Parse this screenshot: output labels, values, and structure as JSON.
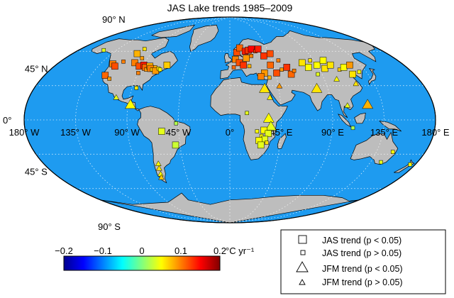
{
  "chart_data": {
    "type": "scatter",
    "title": "JAS Lake trends 1985–2009",
    "map": {
      "lon_ticks": [
        {
          "value": -180,
          "label": "180° W"
        },
        {
          "value": -135,
          "label": "135° W"
        },
        {
          "value": -90,
          "label": "90° W"
        },
        {
          "value": -45,
          "label": "45° W"
        },
        {
          "value": 0,
          "label": "0°"
        },
        {
          "value": 45,
          "label": "45° E"
        },
        {
          "value": 90,
          "label": "90° E"
        },
        {
          "value": 135,
          "label": "135° E"
        },
        {
          "value": 180,
          "label": "180° E"
        }
      ],
      "lat_ticks": [
        {
          "value": 90,
          "label": "90° N"
        },
        {
          "value": 45,
          "label": "45° N"
        },
        {
          "value": 0,
          "label": "0°"
        },
        {
          "value": -45,
          "label": "45° S"
        },
        {
          "value": -90,
          "label": "90° S"
        }
      ],
      "ocean_color": "#1e9bf0",
      "land_color": "#bdbdbd",
      "grid": true
    },
    "colorbar": {
      "range": [
        -0.2,
        0.2
      ],
      "ticks": [
        "−0.2",
        "−0.1",
        "0",
        "0.1",
        "0.2"
      ],
      "unit": "°C yr⁻¹",
      "colormap": "jet"
    },
    "legend": {
      "position": "bottom-right",
      "entries": [
        {
          "label": "JAS trend (p < 0.05)",
          "marker": "square",
          "size": "large"
        },
        {
          "label": "JAS trend (p > 0.05)",
          "marker": "square",
          "size": "small"
        },
        {
          "label": "JFM trend (p < 0.05)",
          "marker": "triangle",
          "size": "large"
        },
        {
          "label": "JFM trend (p > 0.05)",
          "marker": "triangle",
          "size": "small"
        }
      ]
    },
    "points": [
      {
        "lon": -122,
        "lat": 49,
        "trend": 0.1,
        "marker": "square",
        "sig": true
      },
      {
        "lon": -118,
        "lat": 47,
        "trend": 0.12,
        "marker": "square",
        "sig": true
      },
      {
        "lon": -113,
        "lat": 51,
        "trend": 0.1,
        "marker": "square",
        "sig": false
      },
      {
        "lon": -106,
        "lat": 58,
        "trend": 0.08,
        "marker": "square",
        "sig": true
      },
      {
        "lon": -103,
        "lat": 62,
        "trend": 0.06,
        "marker": "square",
        "sig": false
      },
      {
        "lon": -100,
        "lat": 50,
        "trend": 0.1,
        "marker": "square",
        "sig": true
      },
      {
        "lon": -96,
        "lat": 54,
        "trend": 0.09,
        "marker": "square",
        "sig": false
      },
      {
        "lon": -93,
        "lat": 47,
        "trend": 0.12,
        "marker": "square",
        "sig": true
      },
      {
        "lon": -89,
        "lat": 48,
        "trend": 0.14,
        "marker": "square",
        "sig": true
      },
      {
        "lon": -86,
        "lat": 46,
        "trend": 0.11,
        "marker": "square",
        "sig": true
      },
      {
        "lon": -84,
        "lat": 44,
        "trend": 0.09,
        "marker": "square",
        "sig": false
      },
      {
        "lon": -82,
        "lat": 47,
        "trend": 0.08,
        "marker": "square",
        "sig": true
      },
      {
        "lon": -80,
        "lat": 45,
        "trend": 0.1,
        "marker": "square",
        "sig": true
      },
      {
        "lon": -78,
        "lat": 44,
        "trend": 0.07,
        "marker": "square",
        "sig": false
      },
      {
        "lon": -76,
        "lat": 46,
        "trend": 0.08,
        "marker": "square",
        "sig": false
      },
      {
        "lon": -74,
        "lat": 43,
        "trend": 0.09,
        "marker": "square",
        "sig": true
      },
      {
        "lon": -72,
        "lat": 45,
        "trend": 0.06,
        "marker": "square",
        "sig": false
      },
      {
        "lon": -70,
        "lat": 44,
        "trend": 0.05,
        "marker": "square",
        "sig": false
      },
      {
        "lon": -65,
        "lat": 48,
        "trend": 0.07,
        "marker": "square",
        "sig": true
      },
      {
        "lon": -90,
        "lat": 41,
        "trend": 0.1,
        "marker": "square",
        "sig": false
      },
      {
        "lon": -121,
        "lat": 39,
        "trend": 0.11,
        "marker": "square",
        "sig": true
      },
      {
        "lon": -115,
        "lat": 36,
        "trend": 0.09,
        "marker": "square",
        "sig": false
      },
      {
        "lon": -86,
        "lat": 28,
        "trend": 0.06,
        "marker": "square",
        "sig": false
      },
      {
        "lon": -102,
        "lat": 20,
        "trend": 0.04,
        "marker": "triangle",
        "sig": false
      },
      {
        "lon": -88,
        "lat": 14,
        "trend": 0.05,
        "marker": "triangle",
        "sig": true
      },
      {
        "lon": -60,
        "lat": -10,
        "trend": 0.04,
        "marker": "square",
        "sig": true
      },
      {
        "lon": -49,
        "lat": -22,
        "trend": 0.03,
        "marker": "square",
        "sig": true
      },
      {
        "lon": -47,
        "lat": -3,
        "trend": 0.02,
        "marker": "square",
        "sig": false
      },
      {
        "lon": -69,
        "lat": -38,
        "trend": 0.05,
        "marker": "triangle",
        "sig": false
      },
      {
        "lon": -70,
        "lat": -42,
        "trend": 0.06,
        "marker": "triangle",
        "sig": false
      },
      {
        "lon": -71,
        "lat": -47,
        "trend": 0.05,
        "marker": "triangle",
        "sig": false
      },
      {
        "lon": -72,
        "lat": -50,
        "trend": 0.07,
        "marker": "triangle",
        "sig": false
      },
      {
        "lon": -150,
        "lat": 61,
        "trend": 0.04,
        "marker": "square",
        "sig": false
      },
      {
        "lon": 8,
        "lat": 59,
        "trend": 0.12,
        "marker": "square",
        "sig": true
      },
      {
        "lon": 12,
        "lat": 63,
        "trend": 0.11,
        "marker": "square",
        "sig": true
      },
      {
        "lon": 18,
        "lat": 60,
        "trend": 0.14,
        "marker": "square",
        "sig": true
      },
      {
        "lon": 22,
        "lat": 61,
        "trend": 0.13,
        "marker": "square",
        "sig": true
      },
      {
        "lon": 26,
        "lat": 62,
        "trend": 0.15,
        "marker": "square",
        "sig": true
      },
      {
        "lon": 30,
        "lat": 60,
        "trend": 0.12,
        "marker": "square",
        "sig": false
      },
      {
        "lon": 34,
        "lat": 62,
        "trend": 0.14,
        "marker": "square",
        "sig": true
      },
      {
        "lon": 6,
        "lat": 53,
        "trend": 0.1,
        "marker": "square",
        "sig": true
      },
      {
        "lon": 10,
        "lat": 50,
        "trend": 0.12,
        "marker": "square",
        "sig": true
      },
      {
        "lon": 14,
        "lat": 48,
        "trend": 0.13,
        "marker": "square",
        "sig": true
      },
      {
        "lon": 4,
        "lat": 46,
        "trend": 0.11,
        "marker": "square",
        "sig": false
      },
      {
        "lon": 18,
        "lat": 54,
        "trend": 0.09,
        "marker": "square",
        "sig": true
      },
      {
        "lon": 24,
        "lat": 56,
        "trend": 0.1,
        "marker": "square",
        "sig": false
      },
      {
        "lon": 20,
        "lat": 47,
        "trend": 0.08,
        "marker": "square",
        "sig": false
      },
      {
        "lon": 38,
        "lat": 56,
        "trend": 0.13,
        "marker": "square",
        "sig": true
      },
      {
        "lon": 46,
        "lat": 58,
        "trend": 0.12,
        "marker": "square",
        "sig": true
      },
      {
        "lon": 52,
        "lat": 52,
        "trend": 0.1,
        "marker": "square",
        "sig": false
      },
      {
        "lon": 42,
        "lat": 48,
        "trend": 0.11,
        "marker": "square",
        "sig": true
      },
      {
        "lon": 46,
        "lat": 41,
        "trend": 0.12,
        "marker": "square",
        "sig": true
      },
      {
        "lon": 52,
        "lat": 44,
        "trend": 0.09,
        "marker": "square",
        "sig": false
      },
      {
        "lon": 58,
        "lat": 46,
        "trend": 0.13,
        "marker": "square",
        "sig": true
      },
      {
        "lon": 60,
        "lat": 40,
        "trend": 0.11,
        "marker": "square",
        "sig": true
      },
      {
        "lon": 64,
        "lat": 43,
        "trend": 0.1,
        "marker": "square",
        "sig": false
      },
      {
        "lon": 34,
        "lat": 41,
        "trend": 0.09,
        "marker": "square",
        "sig": true
      },
      {
        "lon": 30,
        "lat": 38,
        "trend": 0.1,
        "marker": "square",
        "sig": true
      },
      {
        "lon": 38,
        "lat": 37,
        "trend": 0.08,
        "marker": "square",
        "sig": false
      },
      {
        "lon": 76,
        "lat": 50,
        "trend": 0.06,
        "marker": "square",
        "sig": true
      },
      {
        "lon": 80,
        "lat": 46,
        "trend": 0.05,
        "marker": "square",
        "sig": true
      },
      {
        "lon": 86,
        "lat": 52,
        "trend": 0.06,
        "marker": "square",
        "sig": false
      },
      {
        "lon": 90,
        "lat": 48,
        "trend": 0.05,
        "marker": "square",
        "sig": true
      },
      {
        "lon": 96,
        "lat": 45,
        "trend": 0.06,
        "marker": "square",
        "sig": true
      },
      {
        "lon": 100,
        "lat": 52,
        "trend": 0.05,
        "marker": "square",
        "sig": true
      },
      {
        "lon": 104,
        "lat": 48,
        "trend": 0.06,
        "marker": "square",
        "sig": true
      },
      {
        "lon": 110,
        "lat": 44,
        "trend": 0.07,
        "marker": "square",
        "sig": false
      },
      {
        "lon": 116,
        "lat": 46,
        "trend": 0.05,
        "marker": "square",
        "sig": true
      },
      {
        "lon": 120,
        "lat": 40,
        "trend": 0.06,
        "marker": "square",
        "sig": true
      },
      {
        "lon": 124,
        "lat": 48,
        "trend": 0.09,
        "marker": "square",
        "sig": true
      },
      {
        "lon": 128,
        "lat": 42,
        "trend": 0.05,
        "marker": "square",
        "sig": false
      },
      {
        "lon": 86,
        "lat": 40,
        "trend": 0.04,
        "marker": "square",
        "sig": false
      },
      {
        "lon": 102,
        "lat": 36,
        "trend": 0.05,
        "marker": "triangle",
        "sig": false
      },
      {
        "lon": 118,
        "lat": 32,
        "trend": 0.06,
        "marker": "triangle",
        "sig": false
      },
      {
        "lon": 104,
        "lat": 13,
        "trend": 0.04,
        "marker": "triangle",
        "sig": false
      },
      {
        "lon": 122,
        "lat": 14,
        "trend": 0.08,
        "marker": "triangle",
        "sig": true
      },
      {
        "lon": 80,
        "lat": 28,
        "trend": 0.06,
        "marker": "triangle",
        "sig": true
      },
      {
        "lon": 32,
        "lat": 28,
        "trend": 0.06,
        "marker": "triangle",
        "sig": true
      },
      {
        "lon": 36,
        "lat": 20,
        "trend": 0.05,
        "marker": "triangle",
        "sig": false
      },
      {
        "lon": 46,
        "lat": 30,
        "trend": 0.09,
        "marker": "triangle",
        "sig": false
      },
      {
        "lon": 34,
        "lat": 2,
        "trend": 0.05,
        "marker": "triangle",
        "sig": true
      },
      {
        "lon": 36,
        "lat": -5,
        "trend": 0.04,
        "marker": "triangle",
        "sig": true
      },
      {
        "lon": 30,
        "lat": -9,
        "trend": 0.05,
        "marker": "square",
        "sig": true
      },
      {
        "lon": 34,
        "lat": -12,
        "trend": 0.04,
        "marker": "square",
        "sig": true
      },
      {
        "lon": 28,
        "lat": -14,
        "trend": 0.05,
        "marker": "square",
        "sig": false
      },
      {
        "lon": 31,
        "lat": -17,
        "trend": 0.04,
        "marker": "square",
        "sig": true
      },
      {
        "lon": 26,
        "lat": -18,
        "trend": 0.05,
        "marker": "square",
        "sig": true
      },
      {
        "lon": 33,
        "lat": -20,
        "trend": 0.06,
        "marker": "square",
        "sig": false
      },
      {
        "lon": 28,
        "lat": -22,
        "trend": 0.04,
        "marker": "square",
        "sig": true
      },
      {
        "lon": 24,
        "lat": -10,
        "trend": 0.05,
        "marker": "square",
        "sig": false
      },
      {
        "lon": 15,
        "lat": 6,
        "trend": 0.04,
        "marker": "square",
        "sig": false
      },
      {
        "lon": 108,
        "lat": -7,
        "trend": 0.02,
        "marker": "square",
        "sig": false
      },
      {
        "lon": 150,
        "lat": -28,
        "trend": 0.05,
        "marker": "square",
        "sig": false
      },
      {
        "lon": 145,
        "lat": -37,
        "trend": 0.04,
        "marker": "square",
        "sig": false
      },
      {
        "lon": 175,
        "lat": -39,
        "trend": 0.05,
        "marker": "square",
        "sig": false
      }
    ]
  }
}
